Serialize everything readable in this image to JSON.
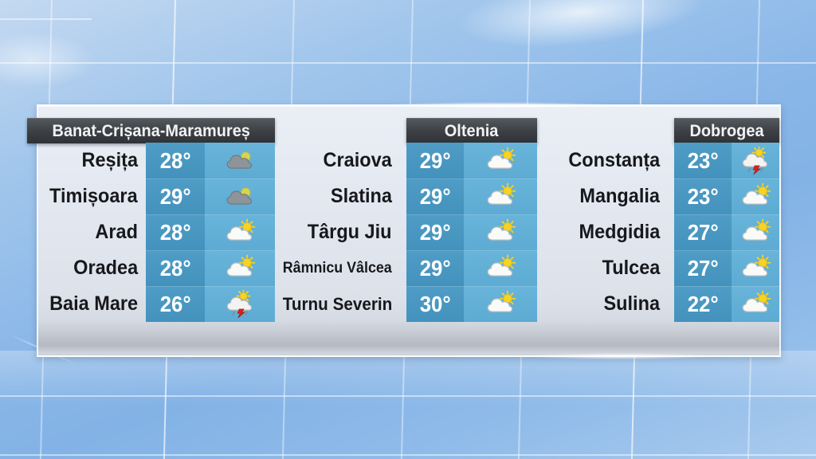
{
  "panel": {
    "regions": [
      {
        "name": "Banat-Crișana-Maramureș",
        "cities": [
          {
            "name": "Reșița",
            "temp": "28°",
            "icon": "mostly-cloudy"
          },
          {
            "name": "Timișoara",
            "temp": "29°",
            "icon": "mostly-cloudy"
          },
          {
            "name": "Arad",
            "temp": "28°",
            "icon": "partly-sunny"
          },
          {
            "name": "Oradea",
            "temp": "28°",
            "icon": "partly-sunny"
          },
          {
            "name": "Baia Mare",
            "temp": "26°",
            "icon": "thunderstorm"
          }
        ]
      },
      {
        "name": "Oltenia",
        "cities": [
          {
            "name": "Craiova",
            "temp": "29°",
            "icon": "partly-sunny"
          },
          {
            "name": "Slatina",
            "temp": "29°",
            "icon": "partly-sunny"
          },
          {
            "name": "Târgu Jiu",
            "temp": "29°",
            "icon": "partly-sunny"
          },
          {
            "name": "Râmnicu Vâlcea",
            "temp": "29°",
            "icon": "partly-sunny"
          },
          {
            "name": "Turnu Severin",
            "temp": "30°",
            "icon": "partly-sunny"
          }
        ]
      },
      {
        "name": "Dobrogea",
        "cities": [
          {
            "name": "Constanța",
            "temp": "23°",
            "icon": "thunderstorm"
          },
          {
            "name": "Mangalia",
            "temp": "23°",
            "icon": "partly-sunny"
          },
          {
            "name": "Medgidia",
            "temp": "27°",
            "icon": "partly-sunny"
          },
          {
            "name": "Tulcea",
            "temp": "27°",
            "icon": "partly-sunny"
          },
          {
            "name": "Sulina",
            "temp": "22°",
            "icon": "partly-sunny"
          }
        ]
      }
    ]
  },
  "icons": {
    "mostly-cloudy": "gray cloud with sun behind",
    "partly-sunny": "white cloud with bright sun and rays",
    "thunderstorm": "cloud with sun and red lightning bolt with rain"
  },
  "colors": {
    "header_bg": "#3b3e43",
    "temp_cell_bg": "#4696c0",
    "icon_cell_bg": "#62b0d7",
    "panel_bg": "#e2e6ef",
    "sky_blue": "#8ab7e8",
    "city_text": "#17181c",
    "temp_text": "#ffffff",
    "sun_yellow": "#f7d322",
    "sun_green": "#d8d44c",
    "cloud_white": "#fafbf8",
    "cloud_gray": "#8d949a",
    "bolt_red": "#df2119"
  }
}
